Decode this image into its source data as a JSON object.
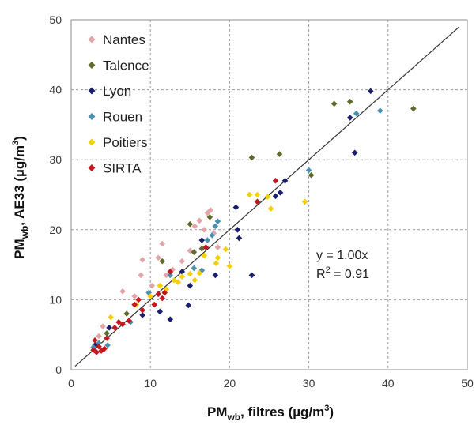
{
  "chart_data": {
    "type": "scatter",
    "xlabel_main": "PM",
    "xlabel_sub": "wb",
    "xlabel_rest": ", filtres (µg/m",
    "xlabel_sup": "3",
    "xlabel_end": ")",
    "ylabel_main": "PM",
    "ylabel_sub": "wb",
    "ylabel_rest": ", AE33 (µg/m",
    "ylabel_sup": "3",
    "ylabel_end": ")",
    "xlim": [
      0,
      50
    ],
    "ylim": [
      0,
      50
    ],
    "xticks": [
      0,
      10,
      20,
      30,
      40,
      50
    ],
    "yticks": [
      0,
      10,
      20,
      30,
      40,
      50
    ],
    "grid": true,
    "legend_position": "top-left",
    "annotation": {
      "equation": "y = 1.00x",
      "r2_main": "R",
      "r2_sup": "2",
      "r2_rest": " = 0.91"
    },
    "fit_line": {
      "slope": 1.0,
      "x_range": [
        0.5,
        49
      ]
    },
    "series": [
      {
        "name": "Nantes",
        "color": "#e3a4a8",
        "points": [
          [
            4,
            6.2
          ],
          [
            6.5,
            11.2
          ],
          [
            8,
            10.5
          ],
          [
            8.8,
            13.5
          ],
          [
            9,
            15.7
          ],
          [
            10.2,
            12
          ],
          [
            11,
            16
          ],
          [
            11.5,
            18
          ],
          [
            12,
            13.5
          ],
          [
            14,
            15.5
          ],
          [
            15,
            17
          ],
          [
            15.6,
            20.5
          ],
          [
            16.2,
            21.3
          ],
          [
            16.8,
            20
          ],
          [
            17.2,
            22.4
          ],
          [
            17.6,
            22.8
          ],
          [
            18,
            19.5
          ],
          [
            18.5,
            17.5
          ],
          [
            3.5,
            4.8
          ],
          [
            12.8,
            14.3
          ]
        ]
      },
      {
        "name": "Talence",
        "color": "#5f6b2a",
        "points": [
          [
            4.5,
            5.2
          ],
          [
            11.5,
            15.5
          ],
          [
            15,
            20.8
          ],
          [
            16.5,
            17.3
          ],
          [
            17.5,
            21.8
          ],
          [
            22.8,
            30.3
          ],
          [
            26.3,
            30.8
          ],
          [
            30.3,
            27.8
          ],
          [
            33.2,
            38
          ],
          [
            35.2,
            38.3
          ],
          [
            43.2,
            37.3
          ],
          [
            15.5,
            16.8
          ],
          [
            7,
            8
          ]
        ]
      },
      {
        "name": "Lyon",
        "color": "#1a1f6b",
        "points": [
          [
            3,
            3.5
          ],
          [
            4.8,
            6
          ],
          [
            9,
            7.8
          ],
          [
            11.2,
            8.3
          ],
          [
            12.5,
            7.2
          ],
          [
            14.8,
            9.2
          ],
          [
            15,
            12
          ],
          [
            18.2,
            13.5
          ],
          [
            20.8,
            23.2
          ],
          [
            21,
            20
          ],
          [
            21.2,
            18.8
          ],
          [
            22.8,
            13.5
          ],
          [
            25.8,
            24.8
          ],
          [
            26.4,
            25.3
          ],
          [
            27,
            27
          ],
          [
            35.2,
            36
          ],
          [
            35.8,
            31
          ],
          [
            37.8,
            39.8
          ],
          [
            14,
            14
          ],
          [
            16.5,
            18.5
          ]
        ]
      },
      {
        "name": "Rouen",
        "color": "#4a90b0",
        "points": [
          [
            2.8,
            3.2
          ],
          [
            3.5,
            3.8
          ],
          [
            4.6,
            3.5
          ],
          [
            7.5,
            6.8
          ],
          [
            9.8,
            11
          ],
          [
            12.5,
            13.5
          ],
          [
            15.5,
            14.5
          ],
          [
            16.5,
            14.2
          ],
          [
            17.2,
            18.5
          ],
          [
            17.8,
            19.2
          ],
          [
            18.2,
            20.5
          ],
          [
            18.5,
            21.2
          ],
          [
            30,
            28.5
          ],
          [
            36,
            36.6
          ],
          [
            39,
            37
          ]
        ]
      },
      {
        "name": "Poitiers",
        "color": "#f5d000",
        "points": [
          [
            5,
            7.5
          ],
          [
            8.2,
            9.3
          ],
          [
            10,
            10.5
          ],
          [
            11.2,
            12
          ],
          [
            12,
            11.5
          ],
          [
            13,
            12.8
          ],
          [
            14,
            13.3
          ],
          [
            15,
            13.7
          ],
          [
            15.6,
            12.8
          ],
          [
            16.2,
            13.8
          ],
          [
            16.8,
            16.3
          ],
          [
            18.5,
            16
          ],
          [
            19.5,
            17.2
          ],
          [
            20,
            14.8
          ],
          [
            22.5,
            25
          ],
          [
            23.5,
            25
          ],
          [
            24.8,
            24.7
          ],
          [
            25.2,
            23
          ],
          [
            29.5,
            24
          ],
          [
            13.5,
            12.5
          ],
          [
            18.3,
            15.2
          ]
        ]
      },
      {
        "name": "SIRTA",
        "color": "#c4161c",
        "points": [
          [
            2.8,
            2.8
          ],
          [
            3.2,
            2.5
          ],
          [
            3.5,
            3.3
          ],
          [
            3.8,
            2.7
          ],
          [
            4.2,
            3
          ],
          [
            4.5,
            4.5
          ],
          [
            5.5,
            6
          ],
          [
            6.5,
            6.5
          ],
          [
            7.3,
            7
          ],
          [
            8,
            9.3
          ],
          [
            8.5,
            10
          ],
          [
            9,
            8.5
          ],
          [
            10.5,
            9.3
          ],
          [
            11,
            10.8
          ],
          [
            11.5,
            10.2
          ],
          [
            11.8,
            11
          ],
          [
            12.5,
            14
          ],
          [
            17,
            17.5
          ],
          [
            23.5,
            24
          ],
          [
            25.8,
            27
          ],
          [
            3,
            4.2
          ],
          [
            6,
            6.8
          ]
        ]
      }
    ]
  }
}
